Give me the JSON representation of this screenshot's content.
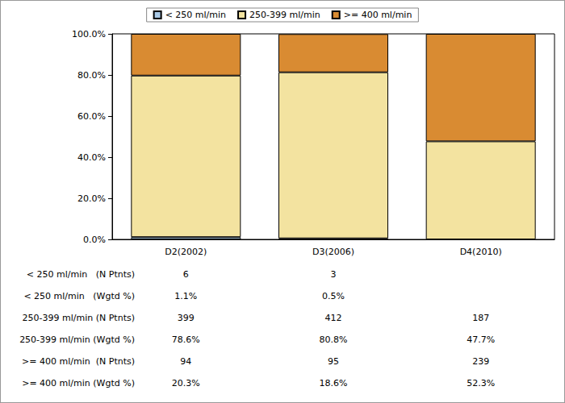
{
  "chart_data": {
    "type": "bar",
    "stacked": true,
    "grid": false,
    "legend": "top",
    "categories": [
      "D2(2002)",
      "D3(2006)",
      "D4(2010)"
    ],
    "ylim": [
      0,
      100
    ],
    "yticks": [
      {
        "value": 0,
        "label": "0.0%"
      },
      {
        "value": 20,
        "label": "20.0%"
      },
      {
        "value": 40,
        "label": "40.0%"
      },
      {
        "value": 60,
        "label": "60.0%"
      },
      {
        "value": 80,
        "label": "80.0%"
      },
      {
        "value": 100,
        "label": "100.0%"
      }
    ],
    "series": [
      {
        "name": "< 250 ml/min",
        "color": "#a9c9e6",
        "values": [
          1.1,
          0.5,
          null
        ],
        "value_labels": [
          "1.1%",
          "0.5%",
          null
        ],
        "n_label": "< 250 ml/min   (N Ptnts)",
        "n_ptnts": [
          6,
          3,
          null
        ],
        "pct_label": "< 250 ml/min   (Wgtd %)"
      },
      {
        "name": "250-399 ml/min",
        "color": "#f3e3a0",
        "values": [
          78.6,
          80.8,
          47.7
        ],
        "value_labels": [
          "78.6%",
          "80.8%",
          "47.7%"
        ],
        "n_label": "250-399 ml/min (N Ptnts)",
        "n_ptnts": [
          399,
          412,
          187
        ],
        "pct_label": "250-399 ml/min (Wgtd %)"
      },
      {
        "name": ">= 400 ml/min",
        "color": "#d98b32",
        "values": [
          20.3,
          18.6,
          52.3
        ],
        "value_labels": [
          "20.3%",
          "18.6%",
          "52.3%"
        ],
        "n_label": ">= 400 ml/min  (N Ptnts)",
        "n_ptnts": [
          94,
          95,
          239
        ],
        "pct_label": ">= 400 ml/min (Wgtd %)"
      }
    ]
  }
}
